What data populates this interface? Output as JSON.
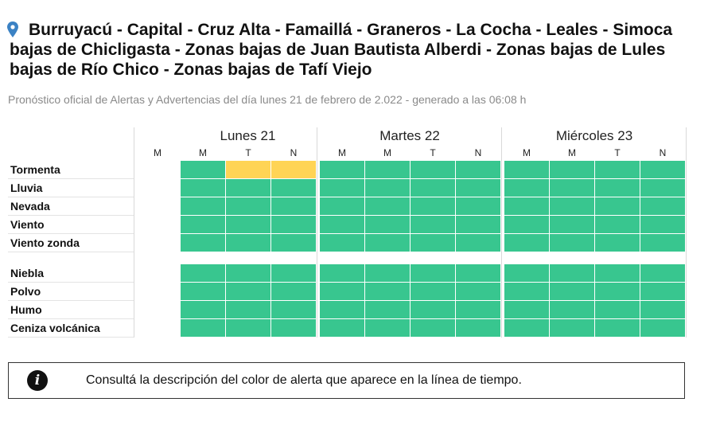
{
  "header": {
    "title_lines": [
      "Burruyacú - Capital - Cruz Alta - Famaillá - Graneros - La Cocha - Leales - Simoca",
      "bajas de Chicligasta - Zonas bajas de Juan Bautista Alberdi - Zonas bajas de Lules",
      "bajas de Río Chico - Zonas bajas de Tafí Viejo"
    ],
    "subtitle": "Pronóstico oficial de Alertas y Advertencias del día lunes 21 de febrero de 2.022 - generado a las 06:08 h",
    "pin_icon": "location-pin-icon"
  },
  "timeline": {
    "days": [
      {
        "label": "Lunes 21",
        "segments": [
          "M",
          "M",
          "T",
          "N"
        ]
      },
      {
        "label": "Martes 22",
        "segments": [
          "M",
          "M",
          "T",
          "N"
        ]
      },
      {
        "label": "Miércoles 23",
        "segments": [
          "M",
          "M",
          "T",
          "N"
        ]
      }
    ],
    "colors": {
      "green": "#38c68f",
      "yellow": "#ffd455",
      "none": "#ffffff"
    },
    "groups": [
      {
        "rows": [
          {
            "label": "Tormenta",
            "levels": [
              "none",
              "green",
              "yellow",
              "yellow",
              "green",
              "green",
              "green",
              "green",
              "green",
              "green",
              "green",
              "green"
            ]
          },
          {
            "label": "Lluvia",
            "levels": [
              "none",
              "green",
              "green",
              "green",
              "green",
              "green",
              "green",
              "green",
              "green",
              "green",
              "green",
              "green"
            ]
          },
          {
            "label": "Nevada",
            "levels": [
              "none",
              "green",
              "green",
              "green",
              "green",
              "green",
              "green",
              "green",
              "green",
              "green",
              "green",
              "green"
            ]
          },
          {
            "label": "Viento",
            "levels": [
              "none",
              "green",
              "green",
              "green",
              "green",
              "green",
              "green",
              "green",
              "green",
              "green",
              "green",
              "green"
            ]
          },
          {
            "label": "Viento zonda",
            "levels": [
              "none",
              "green",
              "green",
              "green",
              "green",
              "green",
              "green",
              "green",
              "green",
              "green",
              "green",
              "green"
            ]
          }
        ]
      },
      {
        "rows": [
          {
            "label": "Niebla",
            "levels": [
              "none",
              "green",
              "green",
              "green",
              "green",
              "green",
              "green",
              "green",
              "green",
              "green",
              "green",
              "green"
            ]
          },
          {
            "label": "Polvo",
            "levels": [
              "none",
              "green",
              "green",
              "green",
              "green",
              "green",
              "green",
              "green",
              "green",
              "green",
              "green",
              "green"
            ]
          },
          {
            "label": "Humo",
            "levels": [
              "none",
              "green",
              "green",
              "green",
              "green",
              "green",
              "green",
              "green",
              "green",
              "green",
              "green",
              "green"
            ]
          },
          {
            "label": "Ceniza volcánica",
            "levels": [
              "none",
              "green",
              "green",
              "green",
              "green",
              "green",
              "green",
              "green",
              "green",
              "green",
              "green",
              "green"
            ]
          }
        ]
      }
    ]
  },
  "info": {
    "icon": "info-icon",
    "icon_glyph": "i",
    "text": "Consultá la descripción del color de alerta que aparece en la línea de tiempo."
  }
}
